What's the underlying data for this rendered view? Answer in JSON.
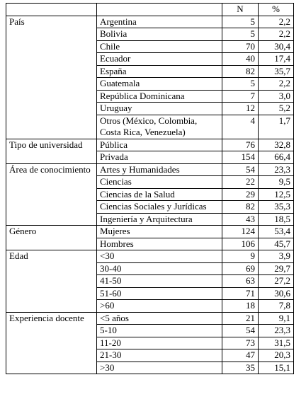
{
  "header": {
    "n": "N",
    "pct": "%"
  },
  "groups": [
    {
      "label": "País",
      "rows": [
        {
          "item": "Argentina",
          "n": "5",
          "pct": "2,2"
        },
        {
          "item": "Bolivia",
          "n": "5",
          "pct": "2,2"
        },
        {
          "item": "Chile",
          "n": "70",
          "pct": "30,4"
        },
        {
          "item": "Ecuador",
          "n": "40",
          "pct": "17,4"
        },
        {
          "item": "España",
          "n": "82",
          "pct": "35,7"
        },
        {
          "item": "Guatemala",
          "n": "5",
          "pct": "2,2"
        },
        {
          "item": "República Dominicana",
          "n": "7",
          "pct": "3,0"
        },
        {
          "item": "Uruguay",
          "n": "12",
          "pct": "5,2"
        },
        {
          "item": "Otros (México, Colombia, Costa Rica, Venezuela)",
          "n": "4",
          "pct": "1,7"
        }
      ]
    },
    {
      "label": "Tipo de universidad",
      "rows": [
        {
          "item": "Pública",
          "n": "76",
          "pct": "32,8"
        },
        {
          "item": "Privada",
          "n": "154",
          "pct": "66,4"
        }
      ]
    },
    {
      "label": "Área de conocimiento",
      "rows": [
        {
          "item": "Artes y Humanidades",
          "n": "54",
          "pct": "23,3"
        },
        {
          "item": "Ciencias",
          "n": "22",
          "pct": "9,5"
        },
        {
          "item": "Ciencias de la Salud",
          "n": "29",
          "pct": "12,5"
        },
        {
          "item": "Ciencias Sociales y Jurídicas",
          "n": "82",
          "pct": "35,3"
        },
        {
          "item": "Ingeniería y Arquitectura",
          "n": "43",
          "pct": "18,5"
        }
      ]
    },
    {
      "label": "Género",
      "rows": [
        {
          "item": "Mujeres",
          "n": "124",
          "pct": "53,4"
        },
        {
          "item": "Hombres",
          "n": "106",
          "pct": "45,7"
        }
      ]
    },
    {
      "label": "Edad",
      "rows": [
        {
          "item": "<30",
          "n": "9",
          "pct": "3,9"
        },
        {
          "item": "30-40",
          "n": "69",
          "pct": "29,7"
        },
        {
          "item": "41-50",
          "n": "63",
          "pct": "27,2"
        },
        {
          "item": "51-60",
          "n": "71",
          "pct": "30,6"
        },
        {
          "item": ">60",
          "n": "18",
          "pct": "7,8"
        }
      ]
    },
    {
      "label": "Experiencia docente",
      "rows": [
        {
          "item": "<5 años",
          "n": "21",
          "pct": "9,1"
        },
        {
          "item": "5-10",
          "n": "54",
          "pct": "23,3"
        },
        {
          "item": "11-20",
          "n": "73",
          "pct": "31,5"
        },
        {
          "item": "21-30",
          "n": "47",
          "pct": "20,3"
        },
        {
          "item": ">30",
          "n": "35",
          "pct": "15,1"
        }
      ]
    }
  ]
}
